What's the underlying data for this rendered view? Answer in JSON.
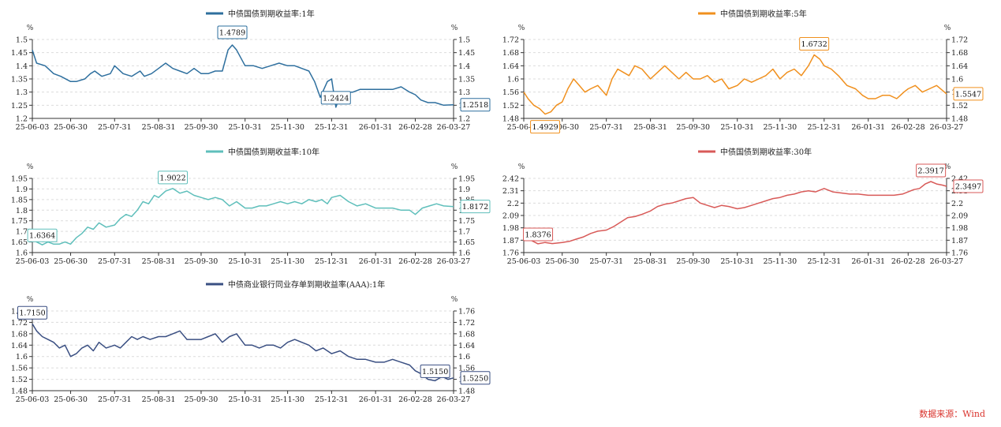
{
  "source": "数据来源：Wind",
  "chart_data": [
    {
      "type": "line",
      "title": "中债国债到期收益率:1年",
      "unit": "%",
      "color": "#2e6f9e",
      "x_ticks": [
        "25-06-03",
        "25-06-30",
        "25-07-31",
        "25-08-31",
        "25-09-30",
        "25-10-31",
        "25-11-30",
        "25-12-31",
        "26-01-31",
        "26-02-28",
        "26-03-27"
      ],
      "ylim": [
        1.2,
        1.5
      ],
      "y_ticks": [
        1.2,
        1.25,
        1.3,
        1.35,
        1.4,
        1.45,
        1.5
      ],
      "series": [
        {
          "name": "中债国债到期收益率:1年",
          "x": [
            "25-06-03",
            "25-06-06",
            "25-06-12",
            "25-06-18",
            "25-06-23",
            "25-06-30",
            "25-07-04",
            "25-07-10",
            "25-07-14",
            "25-07-17",
            "25-07-22",
            "25-07-28",
            "25-07-31",
            "25-08-06",
            "25-08-12",
            "25-08-18",
            "25-08-21",
            "25-08-26",
            "25-08-31",
            "25-09-05",
            "25-09-10",
            "25-09-15",
            "25-09-20",
            "25-09-25",
            "25-09-30",
            "25-10-05",
            "25-10-10",
            "25-10-15",
            "25-10-19",
            "25-10-22",
            "25-10-25",
            "25-10-31",
            "25-11-06",
            "25-11-12",
            "25-11-18",
            "25-11-24",
            "25-11-30",
            "25-12-05",
            "25-12-10",
            "25-12-15",
            "25-12-19",
            "25-12-23",
            "25-12-28",
            "25-12-31",
            "26-01-03",
            "26-01-06",
            "26-01-10",
            "26-01-15",
            "26-01-20",
            "26-01-26",
            "26-01-31",
            "26-02-06",
            "26-02-12",
            "26-02-18",
            "26-02-24",
            "26-02-28",
            "26-03-04",
            "26-03-09",
            "26-03-14",
            "26-03-20",
            "26-03-27"
          ],
          "values": [
            1.46,
            1.41,
            1.4,
            1.37,
            1.36,
            1.34,
            1.34,
            1.35,
            1.37,
            1.38,
            1.36,
            1.37,
            1.4,
            1.37,
            1.36,
            1.38,
            1.36,
            1.37,
            1.39,
            1.41,
            1.39,
            1.38,
            1.37,
            1.39,
            1.37,
            1.37,
            1.38,
            1.38,
            1.46,
            1.4789,
            1.46,
            1.4,
            1.4,
            1.39,
            1.4,
            1.41,
            1.4,
            1.4,
            1.39,
            1.38,
            1.34,
            1.28,
            1.34,
            1.35,
            1.2424,
            1.29,
            1.3,
            1.3,
            1.31,
            1.31,
            1.31,
            1.31,
            1.31,
            1.32,
            1.3,
            1.29,
            1.27,
            1.26,
            1.26,
            1.25,
            1.2518
          ]
        }
      ],
      "labels": [
        {
          "value": "1.4789",
          "x": "25-10-22",
          "y": 1.4789
        },
        {
          "value": "1.2424",
          "x": "26-01-03",
          "y": 1.2424
        },
        {
          "value": "1.2518",
          "x": "26-03-27",
          "y": 1.2518
        }
      ]
    },
    {
      "type": "line",
      "title": "中债国债到期收益率:5年",
      "unit": "%",
      "color": "#f0901e",
      "x_ticks": [
        "25-06-03",
        "25-06-30",
        "25-07-31",
        "25-08-31",
        "25-09-30",
        "25-10-31",
        "25-11-30",
        "25-12-31",
        "26-01-31",
        "26-02-28",
        "26-03-27"
      ],
      "ylim": [
        1.48,
        1.72
      ],
      "y_ticks": [
        1.48,
        1.52,
        1.56,
        1.6,
        1.64,
        1.68,
        1.72
      ],
      "series": [
        {
          "name": "中债国债到期收益率:5年",
          "x": [
            "25-06-03",
            "25-06-06",
            "25-06-10",
            "25-06-14",
            "25-06-18",
            "25-06-22",
            "25-06-26",
            "25-06-30",
            "25-07-04",
            "25-07-08",
            "25-07-12",
            "25-07-16",
            "25-07-20",
            "25-07-25",
            "25-07-31",
            "25-08-04",
            "25-08-08",
            "25-08-12",
            "25-08-16",
            "25-08-20",
            "25-08-25",
            "25-08-31",
            "25-09-05",
            "25-09-10",
            "25-09-15",
            "25-09-20",
            "25-09-25",
            "25-09-30",
            "25-10-05",
            "25-10-10",
            "25-10-15",
            "25-10-20",
            "25-10-25",
            "25-10-31",
            "25-11-05",
            "25-11-10",
            "25-11-15",
            "25-11-20",
            "25-11-25",
            "25-11-30",
            "25-12-05",
            "25-12-10",
            "25-12-15",
            "25-12-20",
            "25-12-24",
            "25-12-28",
            "25-12-31",
            "26-01-05",
            "26-01-10",
            "26-01-16",
            "26-01-22",
            "26-01-27",
            "26-01-31",
            "26-02-05",
            "26-02-10",
            "26-02-15",
            "26-02-20",
            "26-02-25",
            "26-02-28",
            "26-03-05",
            "26-03-10",
            "26-03-15",
            "26-03-20",
            "26-03-27"
          ],
          "values": [
            1.56,
            1.54,
            1.52,
            1.51,
            1.4929,
            1.5,
            1.52,
            1.53,
            1.57,
            1.6,
            1.58,
            1.56,
            1.57,
            1.58,
            1.55,
            1.6,
            1.63,
            1.62,
            1.61,
            1.64,
            1.63,
            1.6,
            1.62,
            1.64,
            1.62,
            1.6,
            1.62,
            1.6,
            1.6,
            1.61,
            1.59,
            1.6,
            1.57,
            1.58,
            1.6,
            1.59,
            1.6,
            1.61,
            1.63,
            1.6,
            1.62,
            1.63,
            1.61,
            1.64,
            1.6732,
            1.66,
            1.64,
            1.63,
            1.61,
            1.58,
            1.57,
            1.55,
            1.54,
            1.54,
            1.55,
            1.55,
            1.54,
            1.56,
            1.57,
            1.58,
            1.56,
            1.57,
            1.58,
            1.5547
          ]
        }
      ],
      "labels": [
        {
          "value": "1.4929",
          "x": "25-06-18",
          "y": 1.4929
        },
        {
          "value": "1.6732",
          "x": "25-12-24",
          "y": 1.6732
        },
        {
          "value": "1.5547",
          "x": "26-03-27",
          "y": 1.5547
        }
      ]
    },
    {
      "type": "line",
      "title": "中债国债到期收益率:10年",
      "unit": "%",
      "color": "#5fbfbb",
      "x_ticks": [
        "25-06-03",
        "25-06-30",
        "25-07-31",
        "25-08-31",
        "25-09-30",
        "25-10-31",
        "25-11-30",
        "25-12-31",
        "26-01-31",
        "26-02-28",
        "26-03-27"
      ],
      "ylim": [
        1.6,
        1.95
      ],
      "y_ticks": [
        1.6,
        1.65,
        1.7,
        1.75,
        1.8,
        1.85,
        1.9,
        1.95
      ],
      "series": [
        {
          "name": "中债国债到期收益率:10年",
          "x": [
            "25-06-03",
            "25-06-06",
            "25-06-10",
            "25-06-14",
            "25-06-18",
            "25-06-22",
            "25-06-26",
            "25-06-30",
            "25-07-04",
            "25-07-08",
            "25-07-12",
            "25-07-16",
            "25-07-20",
            "25-07-25",
            "25-07-31",
            "25-08-04",
            "25-08-08",
            "25-08-12",
            "25-08-16",
            "25-08-20",
            "25-08-24",
            "25-08-28",
            "25-08-31",
            "25-09-05",
            "25-09-10",
            "25-09-15",
            "25-09-20",
            "25-09-25",
            "25-09-30",
            "25-10-05",
            "25-10-10",
            "25-10-15",
            "25-10-20",
            "25-10-25",
            "25-10-31",
            "25-11-05",
            "25-11-10",
            "25-11-15",
            "25-11-20",
            "25-11-25",
            "25-11-30",
            "25-12-05",
            "25-12-10",
            "25-12-15",
            "25-12-20",
            "25-12-24",
            "25-12-28",
            "25-12-31",
            "26-01-06",
            "26-01-12",
            "26-01-18",
            "26-01-24",
            "26-01-31",
            "26-02-06",
            "26-02-12",
            "26-02-18",
            "26-02-24",
            "26-02-28",
            "26-03-05",
            "26-03-10",
            "26-03-15",
            "26-03-20",
            "26-03-27"
          ],
          "values": [
            1.66,
            1.65,
            1.6364,
            1.65,
            1.64,
            1.64,
            1.65,
            1.64,
            1.67,
            1.69,
            1.72,
            1.71,
            1.74,
            1.72,
            1.73,
            1.76,
            1.78,
            1.77,
            1.8,
            1.84,
            1.83,
            1.87,
            1.86,
            1.89,
            1.9022,
            1.88,
            1.89,
            1.87,
            1.86,
            1.85,
            1.86,
            1.85,
            1.82,
            1.84,
            1.81,
            1.81,
            1.82,
            1.82,
            1.83,
            1.84,
            1.83,
            1.84,
            1.83,
            1.85,
            1.84,
            1.85,
            1.83,
            1.86,
            1.87,
            1.84,
            1.82,
            1.83,
            1.81,
            1.81,
            1.81,
            1.8,
            1.8,
            1.78,
            1.81,
            1.82,
            1.83,
            1.82,
            1.8172
          ]
        }
      ],
      "labels": [
        {
          "value": "1.9022",
          "x": "25-09-10",
          "y": 1.9022
        },
        {
          "value": "1.6364",
          "x": "25-06-10",
          "y": 1.6364
        },
        {
          "value": "1.8172",
          "x": "26-03-27",
          "y": 1.8172
        }
      ]
    },
    {
      "type": "line",
      "title": "中债国债到期收益率:30年",
      "unit": "%",
      "color": "#d85a58",
      "x_ticks": [
        "25-06-03",
        "25-06-30",
        "25-07-31",
        "25-08-31",
        "25-09-30",
        "25-10-31",
        "25-11-30",
        "25-12-31",
        "26-01-31",
        "26-02-28",
        "26-03-27"
      ],
      "ylim": [
        1.76,
        2.42
      ],
      "y_ticks": [
        1.76,
        1.87,
        1.98,
        2.09,
        2.2,
        2.31,
        2.42
      ],
      "series": [
        {
          "name": "中债国债到期收益率:30年",
          "x": [
            "25-06-03",
            "25-06-08",
            "25-06-13",
            "25-06-18",
            "25-06-23",
            "25-06-30",
            "25-07-05",
            "25-07-10",
            "25-07-15",
            "25-07-20",
            "25-07-25",
            "25-07-31",
            "25-08-05",
            "25-08-10",
            "25-08-15",
            "25-08-20",
            "25-08-25",
            "25-08-31",
            "25-09-05",
            "25-09-10",
            "25-09-15",
            "25-09-20",
            "25-09-25",
            "25-09-30",
            "25-10-05",
            "25-10-10",
            "25-10-15",
            "25-10-20",
            "25-10-25",
            "25-10-31",
            "25-11-05",
            "25-11-10",
            "25-11-15",
            "25-11-20",
            "25-11-25",
            "25-11-30",
            "25-12-05",
            "25-12-10",
            "25-12-15",
            "25-12-20",
            "25-12-25",
            "25-12-31",
            "26-01-06",
            "26-01-12",
            "26-01-18",
            "26-01-24",
            "26-01-31",
            "26-02-06",
            "26-02-12",
            "26-02-18",
            "26-02-24",
            "26-02-28",
            "26-03-04",
            "26-03-08",
            "26-03-12",
            "26-03-16",
            "26-03-20",
            "26-03-24",
            "26-03-27"
          ],
          "values": [
            1.89,
            1.87,
            1.8376,
            1.85,
            1.84,
            1.85,
            1.86,
            1.88,
            1.9,
            1.93,
            1.95,
            1.96,
            1.99,
            2.03,
            2.07,
            2.08,
            2.1,
            2.13,
            2.17,
            2.19,
            2.2,
            2.22,
            2.24,
            2.25,
            2.2,
            2.18,
            2.16,
            2.18,
            2.17,
            2.15,
            2.16,
            2.18,
            2.2,
            2.22,
            2.24,
            2.25,
            2.27,
            2.28,
            2.3,
            2.31,
            2.3,
            2.33,
            2.3,
            2.29,
            2.28,
            2.28,
            2.27,
            2.27,
            2.27,
            2.27,
            2.28,
            2.3,
            2.32,
            2.33,
            2.37,
            2.3917,
            2.37,
            2.36,
            2.3497
          ]
        }
      ],
      "labels": [
        {
          "value": "1.8376",
          "x": "25-06-13",
          "y": 1.8376
        },
        {
          "value": "2.3917",
          "x": "26-03-16",
          "y": 2.3917
        },
        {
          "value": "2.3497",
          "x": "26-03-27",
          "y": 2.3497
        }
      ]
    },
    {
      "type": "line",
      "title": "中债商业银行同业存单到期收益率(AAA):1年",
      "unit": "%",
      "color": "#3a4f82",
      "x_ticks": [
        "25-06-03",
        "25-06-30",
        "25-07-31",
        "25-08-31",
        "25-09-30",
        "25-10-31",
        "25-11-30",
        "25-12-31",
        "26-01-31",
        "26-02-28",
        "26-03-27"
      ],
      "ylim": [
        1.48,
        1.76
      ],
      "y_ticks": [
        1.48,
        1.52,
        1.56,
        1.6,
        1.64,
        1.68,
        1.72,
        1.76
      ],
      "series": [
        {
          "name": "中债商业银行同业存单到期收益率(AAA):1年",
          "x": [
            "25-06-03",
            "25-06-06",
            "25-06-10",
            "25-06-14",
            "25-06-18",
            "25-06-22",
            "25-06-26",
            "25-06-30",
            "25-07-04",
            "25-07-08",
            "25-07-12",
            "25-07-16",
            "25-07-20",
            "25-07-25",
            "25-07-31",
            "25-08-04",
            "25-08-08",
            "25-08-12",
            "25-08-16",
            "25-08-20",
            "25-08-25",
            "25-08-31",
            "25-09-05",
            "25-09-10",
            "25-09-15",
            "25-09-20",
            "25-09-25",
            "25-09-30",
            "25-10-05",
            "25-10-10",
            "25-10-15",
            "25-10-20",
            "25-10-25",
            "25-10-31",
            "25-11-05",
            "25-11-10",
            "25-11-15",
            "25-11-20",
            "25-11-25",
            "25-11-30",
            "25-12-05",
            "25-12-10",
            "25-12-15",
            "25-12-20",
            "25-12-25",
            "25-12-31",
            "26-01-06",
            "26-01-12",
            "26-01-18",
            "26-01-24",
            "26-01-31",
            "26-02-06",
            "26-02-12",
            "26-02-18",
            "26-02-24",
            "26-02-28",
            "26-03-04",
            "26-03-09",
            "26-03-14",
            "26-03-19",
            "26-03-23",
            "26-03-27"
          ],
          "values": [
            1.715,
            1.69,
            1.67,
            1.66,
            1.65,
            1.63,
            1.64,
            1.6,
            1.61,
            1.63,
            1.64,
            1.62,
            1.65,
            1.63,
            1.64,
            1.63,
            1.65,
            1.67,
            1.66,
            1.67,
            1.66,
            1.67,
            1.67,
            1.68,
            1.69,
            1.66,
            1.66,
            1.66,
            1.67,
            1.68,
            1.65,
            1.67,
            1.68,
            1.64,
            1.64,
            1.63,
            1.64,
            1.64,
            1.63,
            1.65,
            1.66,
            1.65,
            1.64,
            1.62,
            1.63,
            1.61,
            1.62,
            1.6,
            1.59,
            1.59,
            1.58,
            1.58,
            1.59,
            1.58,
            1.57,
            1.55,
            1.54,
            1.52,
            1.515,
            1.53,
            1.52,
            1.525
          ]
        }
      ],
      "labels": [
        {
          "value": "1.7150",
          "x": "25-06-03",
          "y": 1.715
        },
        {
          "value": "1.5150",
          "x": "26-03-14",
          "y": 1.515
        },
        {
          "value": "1.5250",
          "x": "26-03-27",
          "y": 1.525
        }
      ]
    }
  ]
}
